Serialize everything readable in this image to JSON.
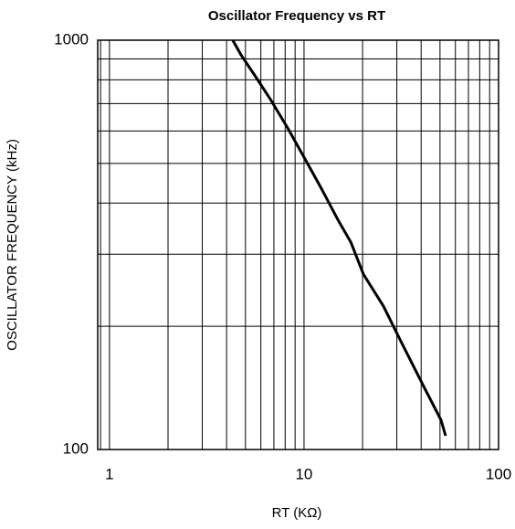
{
  "chart_data": {
    "type": "line",
    "title": "Oscillator Frequency vs RT",
    "x_label": "RT (KΩ)",
    "y_label": "OSCILLATOR FREQUENCY (kHz)",
    "x_log": true,
    "y_log": true,
    "grid": true,
    "xlim": [
      0.87,
      100
    ],
    "xticks": [
      1,
      10,
      100
    ],
    "ylim": [
      100,
      1000
    ],
    "yticks": [
      100,
      1000
    ],
    "x": [
      4.3,
      4.74,
      5.64,
      6.78,
      8.23,
      10,
      12.2,
      14.9,
      17.4,
      20.2,
      25.6,
      31.8,
      41.7,
      50.6,
      53.4
    ],
    "values": [
      1000,
      921,
      814,
      712,
      611,
      518,
      437,
      365,
      321,
      268,
      224,
      182,
      141,
      118,
      108
    ],
    "color": "#000000"
  }
}
